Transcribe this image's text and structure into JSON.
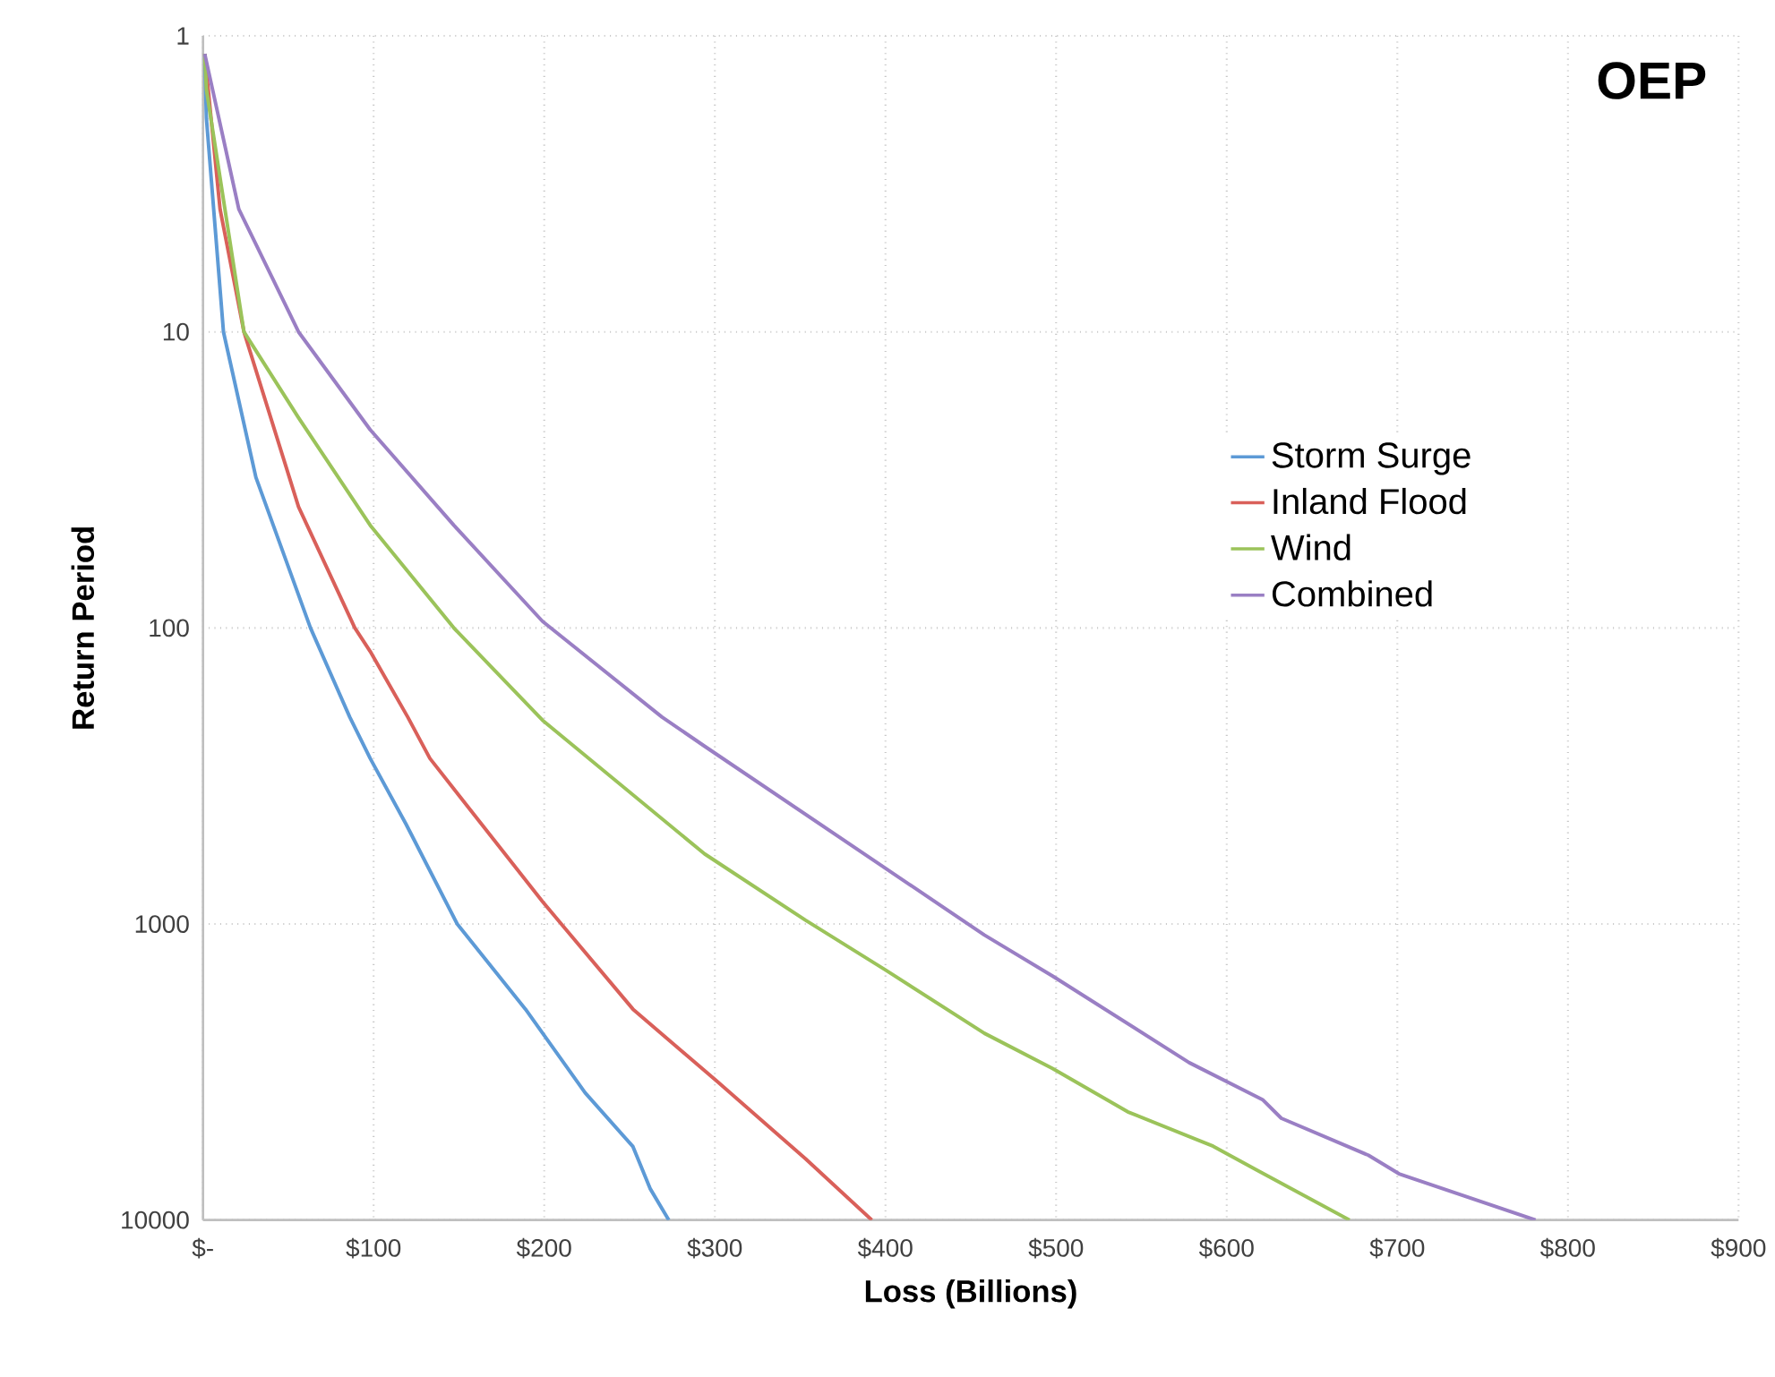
{
  "chart_data": {
    "type": "line",
    "xlabel": "Loss (Billions)",
    "ylabel": "Return Period",
    "annotations": [
      "OEP"
    ],
    "log": "y",
    "grid": true,
    "legend": "right",
    "line_style": "solid",
    "marker": "none",
    "xlim": [
      0,
      900
    ],
    "xticks": [
      {
        "value": 0,
        "label": "$-"
      },
      {
        "value": 100,
        "label": "$100"
      },
      {
        "value": 200,
        "label": "$200"
      },
      {
        "value": 300,
        "label": "$300"
      },
      {
        "value": 400,
        "label": "$400"
      },
      {
        "value": 500,
        "label": "$500"
      },
      {
        "value": 600,
        "label": "$600"
      },
      {
        "value": 700,
        "label": "$700"
      },
      {
        "value": 800,
        "label": "$800"
      },
      {
        "value": 900,
        "label": "$900"
      }
    ],
    "ylim": [
      10000,
      1
    ],
    "yticks": [
      1,
      10,
      100,
      1000,
      10000
    ],
    "series": [
      {
        "name": "Storm Surge",
        "color": "#5d9ad6",
        "x": [
          1,
          2,
          12,
          31,
          63,
          86,
          98,
          119,
          149,
          189,
          224,
          252,
          262,
          273
        ],
        "values": [
          1.15,
          1.9,
          10,
          31,
          100,
          200,
          276,
          460,
          1000,
          1940,
          3720,
          5650,
          7820,
          10000
        ]
      },
      {
        "name": "Inland Flood",
        "color": "#d9605a",
        "x": [
          1,
          10,
          24,
          56,
          89,
          98,
          120,
          133,
          199,
          210,
          252,
          301,
          353,
          392
        ],
        "values": [
          1.15,
          3.85,
          10,
          39,
          100,
          120,
          200,
          276,
          840,
          1000,
          1940,
          3390,
          6200,
          10000
        ]
      },
      {
        "name": "Wind",
        "color": "#9bc35a",
        "x": [
          1,
          2,
          24,
          56,
          98,
          147,
          199,
          294,
          353,
          400,
          458,
          498,
          542,
          592,
          618,
          672
        ],
        "values": [
          1.15,
          1.52,
          10,
          19.5,
          45,
          100,
          205,
          580,
          970,
          1430,
          2340,
          3080,
          4310,
          5630,
          6800,
          10000
        ]
      },
      {
        "name": "Combined",
        "color": "#9a7fc4",
        "x": [
          1,
          21,
          56,
          98,
          147,
          199,
          269,
          294,
          395,
          458,
          498,
          578,
          621,
          632,
          683,
          701,
          781
        ],
        "values": [
          1.15,
          3.85,
          10,
          21.4,
          45,
          95,
          200,
          251,
          620,
          1090,
          1500,
          2940,
          3920,
          4530,
          6040,
          6980,
          10000
        ]
      }
    ]
  }
}
